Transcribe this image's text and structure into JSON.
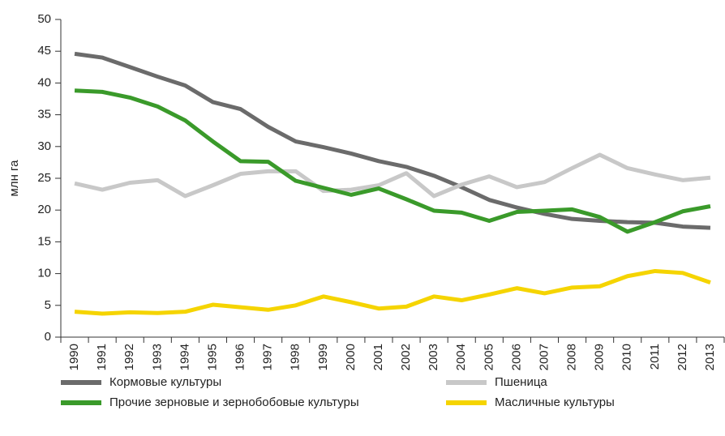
{
  "chart_data": {
    "type": "line",
    "y_label": "млн га",
    "categories": [
      "1990",
      "1991",
      "1992",
      "1993",
      "1994",
      "1995",
      "1996",
      "1997",
      "1998",
      "1999",
      "2000",
      "2001",
      "2002",
      "2003",
      "2004",
      "2005",
      "2006",
      "2007",
      "2008",
      "2009",
      "2010",
      "2011",
      "2012",
      "2013"
    ],
    "series": [
      {
        "name": "Кормовые культуры",
        "color": "#6b6b6b",
        "values": [
          44.6,
          44.0,
          42.5,
          41.0,
          39.6,
          37.0,
          35.9,
          33.1,
          30.8,
          29.9,
          28.9,
          27.7,
          26.8,
          25.4,
          23.6,
          21.6,
          20.4,
          19.4,
          18.6,
          18.3,
          18.1,
          18.0,
          17.4,
          17.2
        ]
      },
      {
        "name": "Пшеница",
        "color": "#c8c8c8",
        "values": [
          24.2,
          23.2,
          24.3,
          24.7,
          22.2,
          23.9,
          25.7,
          26.1,
          26.1,
          23.0,
          23.2,
          23.9,
          25.8,
          22.2,
          24.0,
          25.3,
          23.6,
          24.4,
          26.6,
          28.7,
          26.6,
          25.6,
          24.7,
          25.1
        ]
      },
      {
        "name": "Прочие зерновые и зернобобовые культуры",
        "color": "#3a9a2a",
        "values": [
          38.8,
          38.6,
          37.7,
          36.3,
          34.1,
          30.8,
          27.7,
          27.6,
          24.6,
          23.5,
          22.4,
          23.4,
          21.7,
          19.9,
          19.6,
          18.3,
          19.7,
          19.9,
          20.1,
          18.9,
          16.6,
          18.1,
          19.8,
          20.6
        ]
      },
      {
        "name": "Масличные культуры",
        "color": "#f5d400",
        "values": [
          4.0,
          3.7,
          3.9,
          3.8,
          4.0,
          5.1,
          4.7,
          4.3,
          5.0,
          6.4,
          5.5,
          4.5,
          4.8,
          6.4,
          5.8,
          6.7,
          7.7,
          6.9,
          7.8,
          8.0,
          9.6,
          10.4,
          10.1,
          8.6
        ]
      }
    ],
    "ylim": [
      0,
      50
    ],
    "yticks": [
      0,
      5,
      10,
      15,
      20,
      25,
      30,
      35,
      40,
      45,
      50
    ],
    "legend": "bottom"
  }
}
